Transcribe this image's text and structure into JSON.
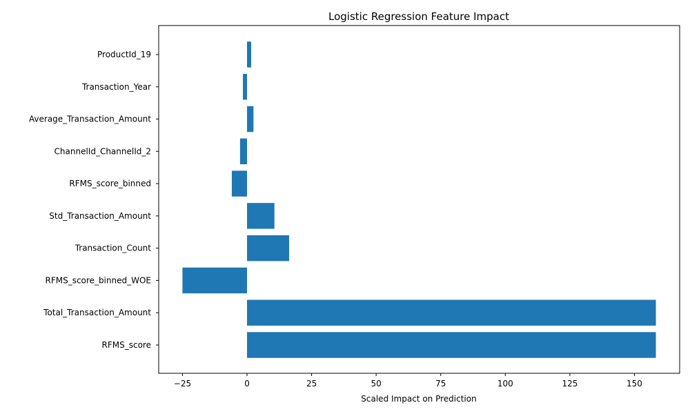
{
  "chart_data": {
    "type": "bar",
    "orientation": "horizontal",
    "title": "Logistic Regression Feature Impact",
    "xlabel": "Scaled Impact on Prediction",
    "ylabel": "",
    "categories": [
      "RFMS_score",
      "Total_Transaction_Amount",
      "RFMS_score_binned_WOE",
      "Transaction_Count",
      "Std_Transaction_Amount",
      "RFMS_score_binned",
      "ChannelId_ChannelId_2",
      "Average_Transaction_Amount",
      "Transaction_Year",
      "ProductId_19"
    ],
    "values": [
      158.3,
      158.3,
      -25.0,
      16.3,
      10.6,
      -5.9,
      -2.7,
      2.5,
      -1.6,
      1.6
    ],
    "xlim": [
      -34.2,
      167.5
    ],
    "xticks": [
      -25,
      0,
      25,
      50,
      75,
      100,
      125,
      150
    ],
    "xtick_labels": [
      "−25",
      "0",
      "25",
      "50",
      "75",
      "100",
      "125",
      "150"
    ],
    "grid": false,
    "legend": "none",
    "bar_color": "#1f77b4"
  }
}
